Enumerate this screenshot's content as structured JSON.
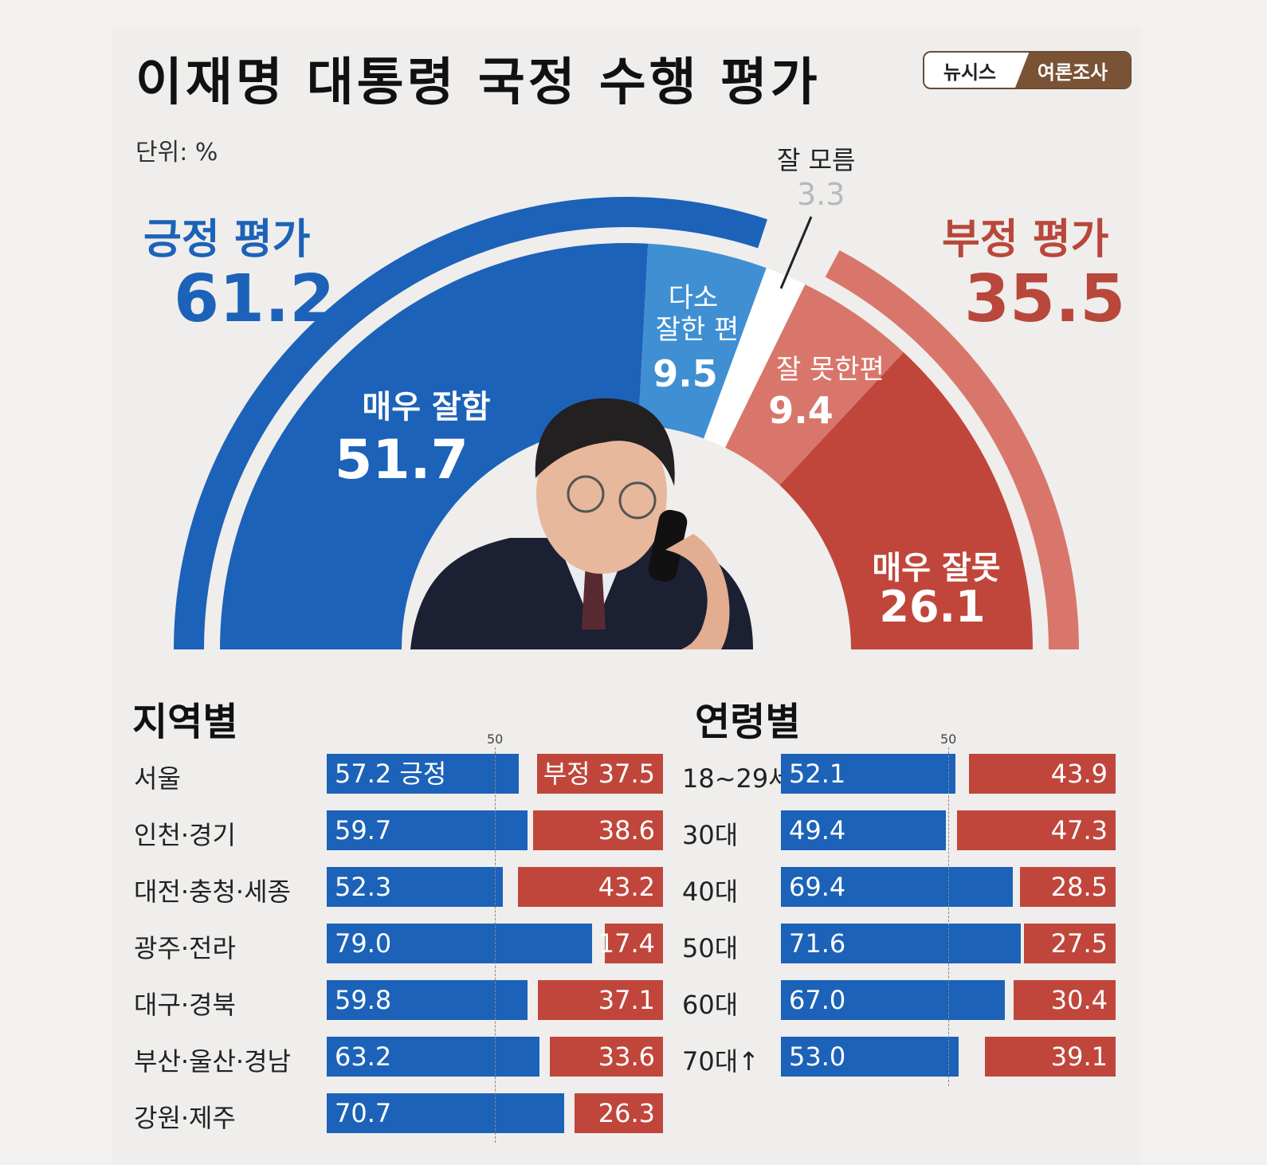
{
  "header": {
    "title": "이재명 대통령 국정 수행 평가",
    "unit": "단위: %",
    "brand_left": "뉴시스",
    "brand_right": "여론조사"
  },
  "summary": {
    "positive_label": "긍정 평가",
    "positive_value": "61.2",
    "negative_label": "부정 평가",
    "negative_value": "35.5",
    "dont_know_label": "잘 모름",
    "dont_know_value": "3.3"
  },
  "chart_data": [
    {
      "type": "pie",
      "style": "half-donut",
      "slices": [
        {
          "label": "매우 잘함",
          "value": 51.7,
          "color": "#1c62b8"
        },
        {
          "label": "다소 잘한 편",
          "value": 9.5,
          "color": "#3f8fd2"
        },
        {
          "label": "잘 모름",
          "value": 3.3,
          "color": "#ffffff"
        },
        {
          "label": "잘 못한편",
          "value": 9.4,
          "color": "#d9766b"
        },
        {
          "label": "매우 잘못",
          "value": 26.1,
          "color": "#c0463b"
        }
      ],
      "outer_ring": [
        {
          "label": "긍정 평가",
          "value": 61.2,
          "color": "#1c62b8"
        },
        {
          "label": "부정 평가",
          "value": 35.5,
          "color": "#d9766b"
        }
      ],
      "slice_labels": {
        "s0_line1": "매우 잘함",
        "s0_value": "51.7",
        "s1_line1": "다소",
        "s1_line2": "잘한 편",
        "s1_value": "9.5",
        "s3_line1": "잘 못한편",
        "s3_value": "9.4",
        "s4_line1": "매우 잘못",
        "s4_value": "26.1"
      }
    },
    {
      "type": "bar",
      "orientation": "horizontal-diverging",
      "title": "지역별",
      "reference_line": 50,
      "reference_label": "50",
      "positive_tag": "긍정",
      "negative_tag": "부정",
      "categories": [
        "서울",
        "인천·경기",
        "대전·충청·세종",
        "광주·전라",
        "대구·경북",
        "부산·울산·경남",
        "강원·제주"
      ],
      "series": [
        {
          "name": "긍정",
          "values": [
            57.2,
            59.7,
            52.3,
            79.0,
            59.8,
            63.2,
            70.7
          ],
          "labels": [
            "57.2",
            "59.7",
            "52.3",
            "79.0",
            "59.8",
            "63.2",
            "70.7"
          ],
          "color": "#1c62b8"
        },
        {
          "name": "부정",
          "values": [
            37.5,
            38.6,
            43.2,
            17.4,
            37.1,
            33.6,
            26.3
          ],
          "labels": [
            "37.5",
            "38.6",
            "43.2",
            "17.4",
            "37.1",
            "33.6",
            "26.3"
          ],
          "color": "#c0463b"
        }
      ]
    },
    {
      "type": "bar",
      "orientation": "horizontal-diverging",
      "title": "연령별",
      "reference_line": 50,
      "reference_label": "50",
      "categories": [
        "18~29세",
        "30대",
        "40대",
        "50대",
        "60대",
        "70대↑"
      ],
      "series": [
        {
          "values": [
            52.1,
            49.4,
            69.4,
            71.6,
            67.0,
            53.0
          ],
          "labels": [
            "52.1",
            "49.4",
            "69.4",
            "71.6",
            "67.0",
            "53.0"
          ],
          "color": "#1c62b8"
        },
        {
          "values": [
            43.9,
            47.3,
            28.5,
            27.5,
            30.4,
            39.1
          ],
          "labels": [
            "43.9",
            "47.3",
            "28.5",
            "27.5",
            "30.4",
            "39.1"
          ],
          "color": "#c0463b"
        }
      ]
    }
  ]
}
